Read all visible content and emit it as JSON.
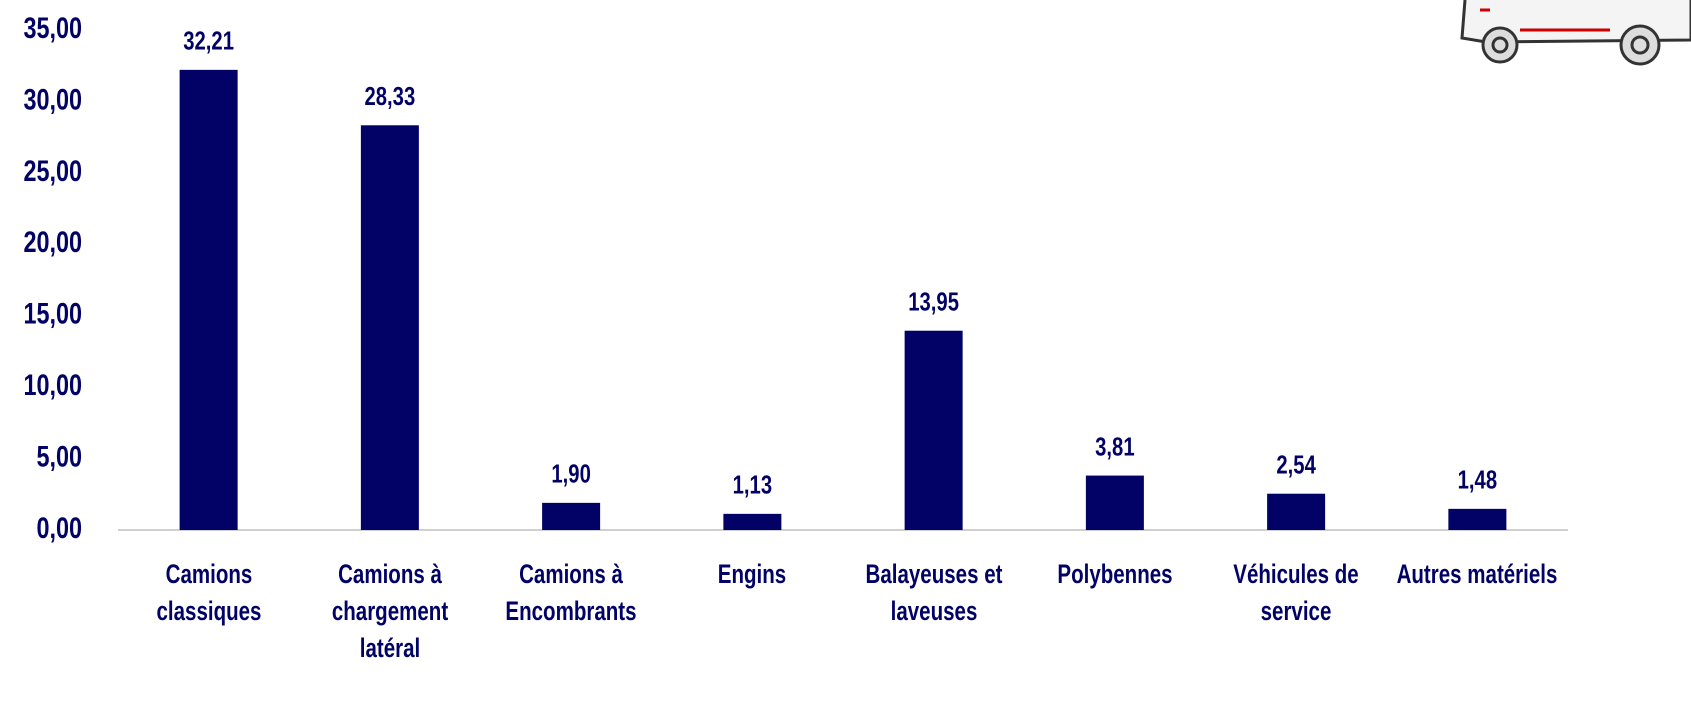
{
  "chart_data": {
    "type": "bar",
    "categories": [
      "Camions classiques",
      "Camions à chargement latéral",
      "Camions à Encombrants",
      "Engins",
      "Balayeuses et laveuses",
      "Polybennes",
      "Véhicules de service",
      "Autres matériels"
    ],
    "values": [
      32.21,
      28.33,
      1.9,
      1.13,
      13.95,
      3.81,
      2.54,
      1.48
    ],
    "value_labels": [
      "32,21",
      "28,33",
      "1,90",
      "1,13",
      "13,95",
      "3,81",
      "2,54",
      "1,48"
    ],
    "color": "#020266",
    "ylim": [
      0,
      35
    ],
    "yticks": [
      {
        "value": 0,
        "label": "0,00"
      },
      {
        "value": 5,
        "label": "5,00"
      },
      {
        "value": 10,
        "label": "10,00"
      },
      {
        "value": 15,
        "label": "15,00"
      },
      {
        "value": 20,
        "label": "20,00"
      },
      {
        "value": 25,
        "label": "25,00"
      },
      {
        "value": 30,
        "label": "30,00"
      },
      {
        "value": 35,
        "label": "35,00"
      }
    ],
    "grid": false
  }
}
